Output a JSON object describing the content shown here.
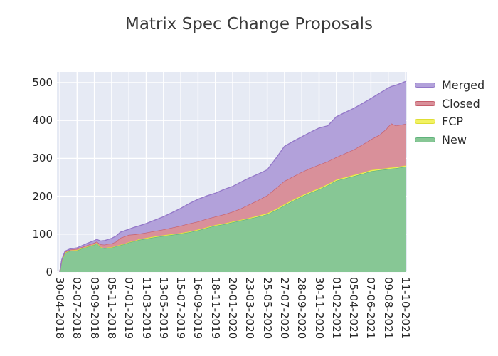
{
  "title": "Matrix Spec Change Proposals",
  "colors": {
    "plot_background": "#e6eaf4",
    "grid": "#ffffff",
    "tick_text": "#262626",
    "title_text": "#3a3a3a"
  },
  "axes": {
    "y_ticks": [
      0,
      100,
      200,
      300,
      400,
      500
    ],
    "x_tick_labels": [
      "30-04-2018",
      "02-07-2018",
      "03-09-2018",
      "05-11-2018",
      "07-01-2019",
      "11-03-2019",
      "13-05-2019",
      "15-07-2019",
      "16-09-2019",
      "18-11-2019",
      "20-01-2020",
      "23-03-2020",
      "25-05-2020",
      "27-07-2020",
      "28-09-2020",
      "30-11-2020",
      "01-02-2021",
      "05-04-2021",
      "07-06-2021",
      "09-08-2021",
      "11-10-2021"
    ],
    "x_tick_rotation_deg": 90,
    "grid": true
  },
  "legend": {
    "position": "outside-right-top",
    "items": [
      {
        "label": "Merged",
        "fill": "#b2a1da",
        "edge": "#9377c8"
      },
      {
        "label": "Closed",
        "fill": "#d9909a",
        "edge": "#c55e6b"
      },
      {
        "label": "FCP",
        "fill": "#f2f262",
        "edge": "#dede34"
      },
      {
        "label": "New",
        "fill": "#87c795",
        "edge": "#5fb27c"
      }
    ]
  },
  "chart_data": {
    "type": "area",
    "stacked": true,
    "title": "Matrix Spec Change Proposals",
    "xlabel": "",
    "ylabel": "",
    "ylim": [
      0,
      528
    ],
    "x_axis": "dates from 30-04-2018 to 11-10-2021, ticks every 63 days",
    "x_tick_labels": [
      "30-04-2018",
      "02-07-2018",
      "03-09-2018",
      "05-11-2018",
      "07-01-2019",
      "11-03-2019",
      "13-05-2019",
      "15-07-2019",
      "16-09-2019",
      "18-11-2019",
      "20-01-2020",
      "23-03-2020",
      "25-05-2020",
      "27-07-2020",
      "28-09-2020",
      "30-11-2020",
      "01-02-2021",
      "05-04-2021",
      "07-06-2021",
      "09-08-2021",
      "11-10-2021"
    ],
    "legend_order_top_to_bottom": [
      "Merged",
      "Closed",
      "FCP",
      "New"
    ],
    "stack_order": "bottom-to-top: New, FCP, Closed, Merged",
    "samples_t": [
      0.0,
      0.006,
      0.015,
      0.03,
      0.05,
      0.065,
      0.08,
      0.1,
      0.107,
      0.118,
      0.13,
      0.14,
      0.15,
      0.163,
      0.175,
      0.185,
      0.2,
      0.215,
      0.23,
      0.25,
      0.275,
      0.3,
      0.325,
      0.35,
      0.375,
      0.4,
      0.425,
      0.45,
      0.475,
      0.5,
      0.525,
      0.55,
      0.575,
      0.6,
      0.625,
      0.65,
      0.675,
      0.7,
      0.725,
      0.75,
      0.775,
      0.8,
      0.825,
      0.85,
      0.875,
      0.9,
      0.925,
      0.945,
      0.95,
      0.96,
      0.972,
      1.0
    ],
    "series": [
      {
        "name": "New",
        "color": "#87c795",
        "edge": "#5fb27c",
        "values": [
          0,
          30,
          50,
          56,
          57,
          62,
          66,
          72,
          76,
          65,
          62,
          64,
          64,
          68,
          71,
          73,
          78,
          81,
          85,
          88,
          92,
          95,
          98,
          101,
          105,
          110,
          116,
          122,
          126,
          131,
          136,
          141,
          146,
          152,
          163,
          176,
          188,
          199,
          209,
          218,
          229,
          241,
          247,
          253,
          259,
          266,
          269,
          271,
          272,
          273,
          274,
          278
        ]
      },
      {
        "name": "FCP",
        "color": "#f2f262",
        "edge": "#dede34",
        "values": [
          0,
          0,
          1,
          1,
          1,
          1,
          1,
          1,
          1,
          1,
          1,
          1,
          1,
          1,
          1,
          1,
          1,
          1,
          2,
          2,
          2,
          2,
          2,
          2,
          2,
          2,
          2,
          2,
          2,
          2,
          2,
          2,
          3,
          3,
          3,
          3,
          3,
          3,
          3,
          3,
          3,
          3,
          3,
          3,
          3,
          3,
          3,
          3,
          3,
          3,
          3,
          3
        ]
      },
      {
        "name": "Closed",
        "color": "#d9909a",
        "edge": "#c55e6b",
        "values": [
          0,
          2,
          2,
          2,
          3,
          3,
          4,
          4,
          3,
          7,
          9,
          9,
          10,
          11,
          18,
          19,
          19,
          17,
          14,
          14,
          14,
          15,
          17,
          19,
          21,
          21,
          22,
          22,
          24,
          26,
          30,
          36,
          41,
          47,
          55,
          61,
          61,
          62,
          62,
          62,
          60,
          59,
          63,
          67,
          74,
          81,
          90,
          104,
          109,
          116,
          109,
          110
        ]
      },
      {
        "name": "Merged",
        "color": "#b2a1da",
        "edge": "#9377c8",
        "values": [
          0,
          1,
          2,
          2,
          3,
          4,
          5,
          6,
          6,
          9,
          11,
          12,
          14,
          15,
          15,
          15,
          15,
          19,
          21,
          24,
          29,
          34,
          40,
          46,
          53,
          59,
          61,
          62,
          66,
          67,
          70,
          70,
          69,
          68,
          79,
          92,
          93,
          93,
          95,
          97,
          94,
          107,
          108,
          109,
          109,
          108,
          110,
          105,
          102,
          98,
          107,
          112
        ]
      }
    ],
    "totals_note": "final cumulative tops: New=278, FCP=281, Closed=391, Merged(total)=503"
  }
}
